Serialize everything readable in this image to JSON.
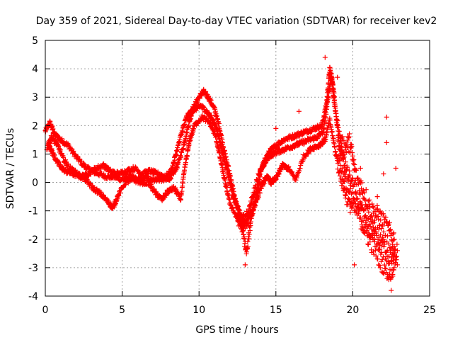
{
  "chart_data": {
    "type": "scatter",
    "title": "Day 359 of 2021, Sidereal Day-to-day VTEC variation (SDTVAR) for receiver kev2",
    "xlabel": "GPS time / hours",
    "ylabel": "SDTVAR / TECUs",
    "xlim": [
      0,
      25
    ],
    "ylim": [
      -4,
      5
    ],
    "xticks": [
      0,
      5,
      10,
      15,
      20,
      25
    ],
    "yticks": [
      -4,
      -3,
      -2,
      -1,
      0,
      1,
      2,
      3,
      4,
      5
    ],
    "grid": true,
    "marker": "+",
    "color": "#ff0000",
    "series": [
      {
        "name": "SDTVAR",
        "tracks": [
          [
            [
              0.0,
              1.8
            ],
            [
              0.3,
              2.1
            ],
            [
              0.6,
              1.7
            ],
            [
              1.0,
              1.5
            ],
            [
              1.5,
              1.3
            ],
            [
              2.0,
              0.9
            ],
            [
              2.5,
              0.6
            ],
            [
              3.0,
              0.4
            ],
            [
              3.5,
              0.3
            ],
            [
              4.0,
              0.2
            ],
            [
              4.5,
              0.2
            ],
            [
              5.0,
              0.1
            ],
            [
              5.5,
              0.2
            ],
            [
              6.0,
              0.1
            ],
            [
              6.5,
              0.2
            ],
            [
              7.0,
              0.1
            ],
            [
              7.5,
              0.1
            ],
            [
              8.0,
              0.1
            ],
            [
              8.3,
              0.3
            ],
            [
              8.6,
              0.6
            ],
            [
              9.0,
              1.3
            ],
            [
              9.3,
              2.0
            ],
            [
              9.6,
              2.6
            ],
            [
              10.0,
              3.0
            ],
            [
              10.3,
              3.2
            ],
            [
              10.6,
              3.0
            ],
            [
              11.0,
              2.6
            ],
            [
              11.3,
              2.0
            ],
            [
              11.6,
              1.2
            ],
            [
              12.0,
              0.3
            ],
            [
              12.3,
              -0.5
            ],
            [
              12.6,
              -1.1
            ],
            [
              12.9,
              -1.5
            ],
            [
              13.2,
              -1.4
            ],
            [
              13.5,
              -1.0
            ],
            [
              13.8,
              -0.4
            ],
            [
              14.0,
              0.4
            ],
            [
              14.3,
              0.8
            ],
            [
              14.6,
              1.1
            ],
            [
              15.0,
              1.3
            ],
            [
              15.5,
              1.5
            ],
            [
              16.0,
              1.6
            ],
            [
              16.5,
              1.7
            ],
            [
              17.0,
              1.8
            ],
            [
              17.5,
              1.9
            ],
            [
              18.0,
              2.0
            ],
            [
              18.3,
              2.8
            ],
            [
              18.5,
              4.0
            ],
            [
              18.7,
              3.5
            ],
            [
              19.0,
              2.0
            ],
            [
              19.3,
              0.8
            ],
            [
              19.6,
              0.3
            ],
            [
              20.0,
              -0.2
            ],
            [
              20.5,
              -0.8
            ],
            [
              21.0,
              -1.5
            ],
            [
              21.5,
              -1.8
            ],
            [
              22.0,
              -2.2
            ],
            [
              22.5,
              -2.6
            ],
            [
              22.9,
              -2.4
            ]
          ],
          [
            [
              0.2,
              1.4
            ],
            [
              0.5,
              1.0
            ],
            [
              0.9,
              0.6
            ],
            [
              1.3,
              0.4
            ],
            [
              1.8,
              0.3
            ],
            [
              2.3,
              0.2
            ],
            [
              2.8,
              0.3
            ],
            [
              3.3,
              0.5
            ],
            [
              3.8,
              0.6
            ],
            [
              4.2,
              0.4
            ],
            [
              4.8,
              0.3
            ],
            [
              5.3,
              0.4
            ],
            [
              5.8,
              0.5
            ],
            [
              6.3,
              0.3
            ],
            [
              6.8,
              0.4
            ],
            [
              7.3,
              0.3
            ],
            [
              7.8,
              0.2
            ],
            [
              8.2,
              0.4
            ],
            [
              8.5,
              1.0
            ],
            [
              8.9,
              1.8
            ],
            [
              9.2,
              2.3
            ],
            [
              9.5,
              2.5
            ],
            [
              9.8,
              2.6
            ],
            [
              10.1,
              2.7
            ],
            [
              10.5,
              2.5
            ],
            [
              10.9,
              2.2
            ],
            [
              11.2,
              1.8
            ],
            [
              11.5,
              1.1
            ],
            [
              11.8,
              0.5
            ],
            [
              12.1,
              -0.2
            ],
            [
              12.4,
              -0.8
            ],
            [
              12.7,
              -1.2
            ],
            [
              13.0,
              -1.3
            ],
            [
              13.3,
              -0.9
            ],
            [
              13.6,
              -0.3
            ],
            [
              13.9,
              0.3
            ],
            [
              14.2,
              0.6
            ],
            [
              14.5,
              0.9
            ],
            [
              14.8,
              1.0
            ],
            [
              15.2,
              1.1
            ],
            [
              15.7,
              1.2
            ],
            [
              16.2,
              1.3
            ],
            [
              16.7,
              1.4
            ],
            [
              17.2,
              1.5
            ],
            [
              17.7,
              1.6
            ],
            [
              18.1,
              1.8
            ],
            [
              18.4,
              3.0
            ],
            [
              18.6,
              3.8
            ],
            [
              18.8,
              2.8
            ],
            [
              19.1,
              1.5
            ],
            [
              19.4,
              1.2
            ],
            [
              19.8,
              1.4
            ],
            [
              20.2,
              0.2
            ],
            [
              20.7,
              -0.3
            ],
            [
              21.2,
              -1.0
            ],
            [
              21.7,
              -1.2
            ],
            [
              22.2,
              -1.6
            ],
            [
              22.7,
              -2.0
            ]
          ],
          [
            [
              0.1,
              1.2
            ],
            [
              0.4,
              1.6
            ],
            [
              0.8,
              1.3
            ],
            [
              1.2,
              0.8
            ],
            [
              1.6,
              0.5
            ],
            [
              2.1,
              0.3
            ],
            [
              2.6,
              0.1
            ],
            [
              3.1,
              -0.2
            ],
            [
              3.6,
              -0.4
            ],
            [
              4.1,
              -0.7
            ],
            [
              4.4,
              -0.9
            ],
            [
              4.7,
              -0.5
            ],
            [
              5.2,
              0.0
            ],
            [
              5.7,
              0.1
            ],
            [
              6.2,
              0.0
            ],
            [
              6.7,
              0.0
            ],
            [
              7.2,
              -0.4
            ],
            [
              7.6,
              -0.6
            ],
            [
              8.0,
              -0.3
            ],
            [
              8.4,
              -0.2
            ],
            [
              8.8,
              -0.6
            ],
            [
              9.1,
              0.6
            ],
            [
              9.4,
              1.5
            ],
            [
              9.7,
              2.0
            ],
            [
              10.2,
              2.3
            ],
            [
              10.7,
              2.1
            ],
            [
              11.1,
              1.6
            ],
            [
              11.4,
              0.8
            ],
            [
              11.7,
              0.0
            ],
            [
              12.0,
              -0.7
            ],
            [
              12.5,
              -1.3
            ],
            [
              12.8,
              -1.6
            ],
            [
              13.1,
              -2.5
            ],
            [
              13.4,
              -1.2
            ],
            [
              13.7,
              -0.6
            ],
            [
              14.1,
              -0.1
            ],
            [
              14.4,
              0.2
            ],
            [
              14.7,
              0.0
            ],
            [
              15.1,
              0.2
            ],
            [
              15.4,
              0.6
            ],
            [
              15.8,
              0.5
            ],
            [
              16.3,
              0.1
            ],
            [
              16.8,
              0.9
            ],
            [
              17.3,
              1.2
            ],
            [
              17.8,
              1.3
            ],
            [
              18.2,
              1.5
            ],
            [
              18.5,
              2.2
            ],
            [
              18.9,
              1.0
            ],
            [
              19.2,
              0.4
            ],
            [
              19.5,
              -0.3
            ],
            [
              19.9,
              -0.8
            ],
            [
              20.4,
              -1.1
            ],
            [
              20.9,
              -1.8
            ],
            [
              21.4,
              -2.3
            ],
            [
              21.9,
              -2.8
            ],
            [
              22.4,
              -3.2
            ],
            [
              22.8,
              -2.6
            ]
          ],
          [
            [
              13.0,
              -2.9
            ],
            [
              15.0,
              1.9
            ],
            [
              16.5,
              2.5
            ],
            [
              18.2,
              4.4
            ],
            [
              19.0,
              3.7
            ],
            [
              20.1,
              -2.9
            ],
            [
              20.5,
              0.5
            ],
            [
              21.0,
              -1.3
            ],
            [
              21.6,
              -0.5
            ],
            [
              22.0,
              0.3
            ],
            [
              22.2,
              2.3
            ],
            [
              22.2,
              1.4
            ],
            [
              22.5,
              -3.8
            ],
            [
              22.6,
              -3.3
            ],
            [
              22.8,
              0.5
            ],
            [
              22.9,
              -2.9
            ]
          ]
        ]
      }
    ]
  }
}
